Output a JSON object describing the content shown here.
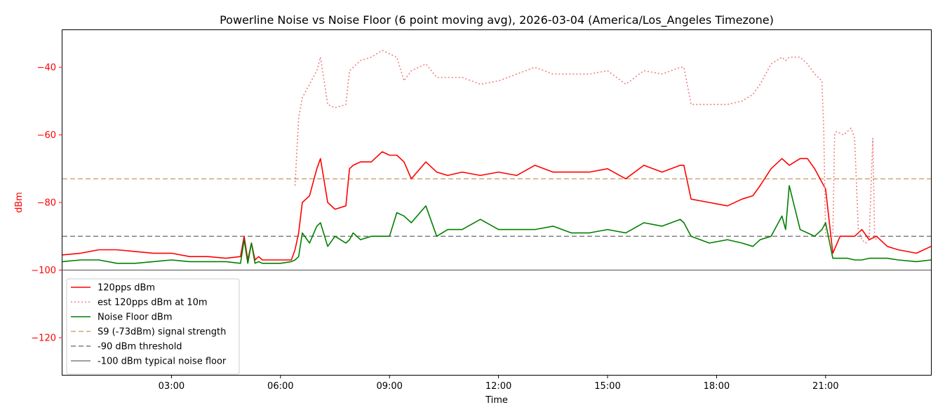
{
  "chart_data": {
    "type": "line",
    "title": "Powerline Noise vs Noise Floor (6 point moving avg), 2026-03-04 (America/Los_Angeles Timezone)",
    "xlabel": "Time",
    "ylabel": "dBm",
    "xlim_hours": [
      0,
      23.9
    ],
    "ylim": [
      -131,
      -29
    ],
    "x_ticks": [
      {
        "value": 3,
        "label": "03:00"
      },
      {
        "value": 6,
        "label": "06:00"
      },
      {
        "value": 9,
        "label": "09:00"
      },
      {
        "value": 12,
        "label": "12:00"
      },
      {
        "value": 15,
        "label": "15:00"
      },
      {
        "value": 18,
        "label": "18:00"
      },
      {
        "value": 21,
        "label": "21:00"
      }
    ],
    "y_ticks": [
      {
        "value": -40,
        "label": "−40"
      },
      {
        "value": -60,
        "label": "−60"
      },
      {
        "value": -80,
        "label": "−80"
      },
      {
        "value": -100,
        "label": "−100"
      },
      {
        "value": -120,
        "label": "−120"
      }
    ],
    "legend_position": "lower-left",
    "series": [
      {
        "name": "120pps dBm",
        "color": "#ff0000",
        "style": "solid",
        "x": [
          0,
          0.5,
          1,
          1.5,
          2,
          2.5,
          3,
          3.5,
          4,
          4.5,
          4.9,
          5.0,
          5.1,
          5.2,
          5.3,
          5.4,
          5.5,
          6.0,
          6.3,
          6.4,
          6.5,
          6.6,
          6.8,
          7.0,
          7.1,
          7.3,
          7.5,
          7.8,
          7.9,
          8.0,
          8.2,
          8.5,
          8.8,
          9.0,
          9.2,
          9.4,
          9.6,
          10.0,
          10.3,
          10.6,
          11.0,
          11.5,
          12.0,
          12.5,
          13.0,
          13.5,
          14.0,
          14.5,
          15.0,
          15.5,
          16.0,
          16.5,
          17.0,
          17.1,
          17.3,
          17.8,
          18.3,
          18.7,
          19.0,
          19.2,
          19.5,
          19.8,
          19.9,
          20.0,
          20.3,
          20.5,
          20.7,
          20.9,
          21.0,
          21.2,
          21.4,
          21.6,
          21.8,
          22.0,
          22.2,
          22.4,
          22.7,
          23.0,
          23.5,
          23.9
        ],
        "values": [
          -95.5,
          -95,
          -94,
          -94,
          -94.5,
          -95,
          -95,
          -96,
          -96,
          -96.5,
          -96,
          -90,
          -97,
          -92,
          -97,
          -96,
          -97,
          -97,
          -97,
          -94,
          -89,
          -80,
          -78,
          -70,
          -67,
          -80,
          -82,
          -81,
          -70,
          -69,
          -68,
          -68,
          -65,
          -66,
          -66,
          -68,
          -73,
          -68,
          -71,
          -72,
          -71,
          -72,
          -71,
          -72,
          -69,
          -71,
          -71,
          -71,
          -70,
          -73,
          -69,
          -71,
          -69,
          -69,
          -79,
          -80,
          -81,
          -79,
          -78,
          -75,
          -70,
          -67,
          -68,
          -69,
          -67,
          -67,
          -70,
          -74,
          -76,
          -95,
          -90,
          -90,
          -90,
          -88,
          -91,
          -90,
          -93,
          -94,
          -95,
          -93
        ]
      },
      {
        "name": "est 120pps dBm at 10m",
        "color": "#f08080",
        "style": "dotted",
        "x": [
          0,
          6.3,
          6.4,
          6.5,
          6.6,
          6.8,
          7.0,
          7.1,
          7.3,
          7.5,
          7.8,
          7.9,
          8.0,
          8.2,
          8.5,
          8.8,
          9.0,
          9.2,
          9.4,
          9.6,
          10.0,
          10.3,
          10.6,
          11.0,
          11.5,
          12.0,
          12.5,
          13.0,
          13.5,
          14.0,
          14.5,
          15.0,
          15.5,
          16.0,
          16.5,
          17.0,
          17.1,
          17.3,
          17.8,
          18.3,
          18.7,
          19.0,
          19.2,
          19.5,
          19.8,
          19.9,
          20.0,
          20.3,
          20.5,
          20.7,
          20.9,
          20.95,
          21.0,
          21.2,
          21.25,
          21.3,
          21.5,
          21.7,
          21.8,
          21.9,
          22.0,
          22.1,
          22.2,
          22.3,
          22.35,
          22.4,
          22.45
        ],
        "values": [
          null,
          null,
          -75,
          -55,
          -49,
          -45,
          -41,
          -37,
          -51,
          -52,
          -51,
          -41,
          -40,
          -38,
          -37,
          -35,
          -36,
          -37,
          -44,
          -41,
          -39,
          -43,
          -43,
          -43,
          -45,
          -44,
          -42,
          -40,
          -42,
          -42,
          -42,
          -41,
          -45,
          -41,
          -42,
          -40,
          -40,
          -51,
          -51,
          -51,
          -50,
          -48,
          -45,
          -39,
          -37,
          -38,
          -37,
          -37,
          -39,
          -42,
          -44,
          -59,
          -90,
          -90,
          -60,
          -59,
          -60,
          -58,
          -61,
          -88,
          -91,
          -92,
          -91,
          -61,
          -90,
          -91,
          -91
        ]
      },
      {
        "name": "Noise Floor dBm",
        "color": "#008000",
        "style": "solid",
        "x": [
          0,
          0.5,
          1,
          1.5,
          2,
          2.5,
          3,
          3.5,
          4,
          4.5,
          4.9,
          5.0,
          5.1,
          5.2,
          5.3,
          5.4,
          5.5,
          6.0,
          6.3,
          6.4,
          6.5,
          6.6,
          6.8,
          7.0,
          7.1,
          7.3,
          7.5,
          7.8,
          7.9,
          8.0,
          8.2,
          8.5,
          8.8,
          9.0,
          9.2,
          9.4,
          9.6,
          10.0,
          10.3,
          10.6,
          11.0,
          11.5,
          12.0,
          12.5,
          13.0,
          13.5,
          14.0,
          14.5,
          15.0,
          15.5,
          16.0,
          16.5,
          17.0,
          17.1,
          17.3,
          17.8,
          18.3,
          18.7,
          19.0,
          19.2,
          19.5,
          19.8,
          19.9,
          20.0,
          20.3,
          20.5,
          20.7,
          20.9,
          21.0,
          21.2,
          21.4,
          21.6,
          21.8,
          22.0,
          22.2,
          22.4,
          22.7,
          23.0,
          23.5,
          23.9
        ],
        "values": [
          -97.5,
          -97,
          -97,
          -98,
          -98,
          -97.5,
          -97,
          -97.5,
          -97.5,
          -97.5,
          -98,
          -91,
          -98,
          -92,
          -98,
          -97.5,
          -98,
          -98,
          -97.5,
          -97,
          -96,
          -89,
          -92,
          -87,
          -86,
          -93,
          -90,
          -92,
          -91,
          -89,
          -91,
          -90,
          -90,
          -90,
          -83,
          -84,
          -86,
          -81,
          -90,
          -88,
          -88,
          -85,
          -88,
          -88,
          -88,
          -87,
          -89,
          -89,
          -88,
          -89,
          -86,
          -87,
          -85,
          -86,
          -90,
          -92,
          -91,
          -92,
          -93,
          -91,
          -90,
          -84,
          -88,
          -75,
          -88,
          -89,
          -90,
          -88,
          -86,
          -96.5,
          -96.5,
          -96.5,
          -97,
          -97,
          -96.5,
          -96.5,
          -96.5,
          -97,
          -97.5,
          -97
        ]
      }
    ],
    "reference_lines": [
      {
        "name": "S9 (-73dBm) signal strength",
        "y": -73,
        "color": "#d2a679",
        "style": "dashed"
      },
      {
        "name": "-90 dBm threshold",
        "y": -90,
        "color": "#808080",
        "style": "dashed"
      },
      {
        "name": "-100 dBm typical noise floor",
        "y": -100,
        "color": "#808080",
        "style": "solid"
      }
    ]
  },
  "colors": {
    "axis_text_y": "#ff0000",
    "axis_text_x": "#000000"
  }
}
